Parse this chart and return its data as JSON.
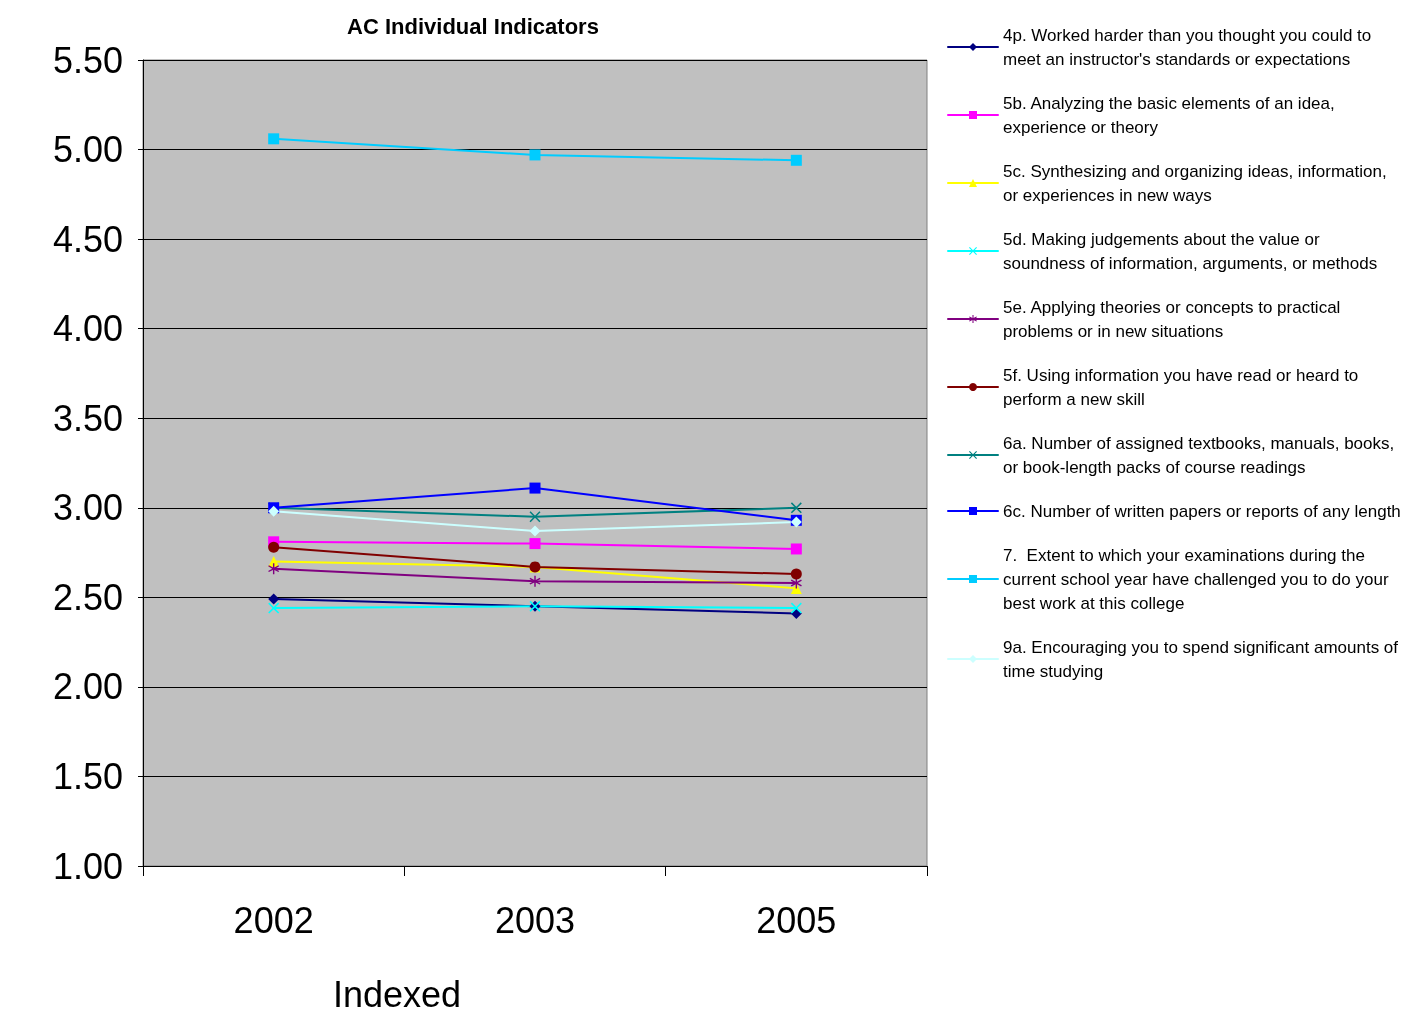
{
  "chart_data": {
    "type": "line",
    "title": "AC Individual Indicators",
    "xlabel": "Indexed",
    "categories": [
      "2002",
      "2003",
      "2005"
    ],
    "ylim": [
      1,
      5.5
    ],
    "yticks": [
      {
        "value": 1,
        "label": "1.00"
      },
      {
        "value": 1.5,
        "label": "1.50"
      },
      {
        "value": 2,
        "label": "2.00"
      },
      {
        "value": 2.5,
        "label": "2.50"
      },
      {
        "value": 3,
        "label": "3.00"
      },
      {
        "value": 3.5,
        "label": "3.50"
      },
      {
        "value": 4,
        "label": "4.00"
      },
      {
        "value": 4.5,
        "label": "4.50"
      },
      {
        "value": 5,
        "label": "5.00"
      },
      {
        "value": 5.5,
        "label": "5.50"
      }
    ],
    "grid": "y",
    "legend": "right",
    "series": [
      {
        "name": "4p. Worked harder than you thought you could to meet an instructor's standards or expectations",
        "color": "#000080",
        "marker": "diamond",
        "values": [
          2.49,
          2.45,
          2.41
        ]
      },
      {
        "name": "5b. Analyzing the basic elements of an idea, experience or theory",
        "color": "#ff00ff",
        "marker": "square",
        "values": [
          2.81,
          2.8,
          2.77
        ]
      },
      {
        "name": "5c. Synthesizing and organizing ideas, information, or experiences in new ways",
        "color": "#ffff00",
        "marker": "triangle",
        "values": [
          2.7,
          2.67,
          2.55
        ]
      },
      {
        "name": "5d. Making judgements about the value or soundness of information, arguments, or methods",
        "color": "#00ffff",
        "marker": "cross",
        "values": [
          2.44,
          2.45,
          2.44
        ]
      },
      {
        "name": "5e. Applying theories or concepts to practical problems or in new situations",
        "color": "#800080",
        "marker": "star",
        "values": [
          2.66,
          2.59,
          2.58
        ]
      },
      {
        "name": "5f. Using information you have read or heard to perform a new skill",
        "color": "#800000",
        "marker": "circle",
        "values": [
          2.78,
          2.67,
          2.63
        ]
      },
      {
        "name": "6a. Number of assigned textbooks, manuals, books, or book-length packs of course readings",
        "color": "#008080",
        "marker": "cross",
        "values": [
          3.0,
          2.95,
          3.0
        ]
      },
      {
        "name": "6c. Number of written papers or reports of any length",
        "color": "#0000ff",
        "marker": "square",
        "values": [
          3.0,
          3.11,
          2.93
        ]
      },
      {
        "name": "7.  Extent to which your examinations during the current school year have challenged you to do your best work at this college",
        "color": "#00ccff",
        "marker": "square",
        "values": [
          5.06,
          4.97,
          4.94
        ]
      },
      {
        "name": "9a. Encouraging you to spend significant amounts of time studying",
        "color": "#ccffff",
        "marker": "diamond",
        "values": [
          2.98,
          2.87,
          2.92
        ]
      }
    ]
  }
}
